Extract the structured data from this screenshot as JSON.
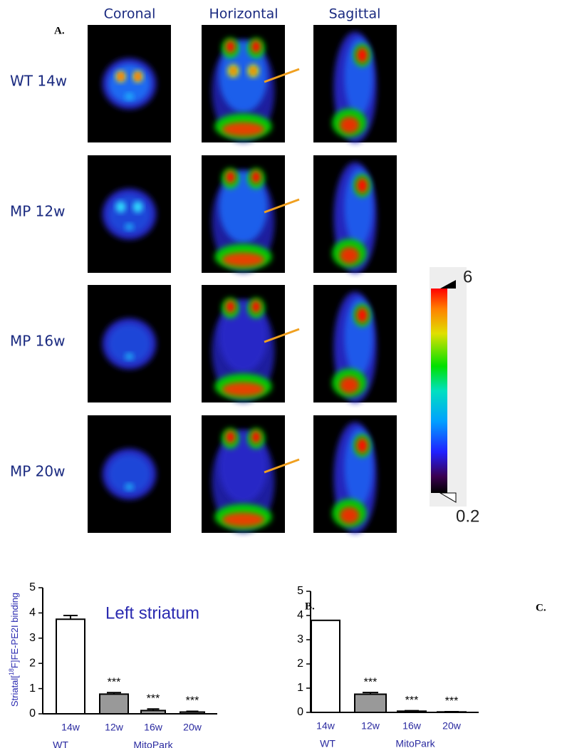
{
  "panel_labels": [
    "A.",
    "B.",
    "C."
  ],
  "images": {
    "columns": [
      "Coronal",
      "Horizontal",
      "Sagittal"
    ],
    "rows": [
      "WT 14w",
      "MP 12w",
      "MP 16w",
      "MP 20w"
    ]
  },
  "colorbar": {
    "max_label": "6",
    "min_label": "0.2"
  },
  "chart_data": [
    {
      "type": "bar",
      "title": "Left striatum",
      "ylabel_parts": [
        "Striatal[",
        "18",
        "F]FE-PE2I binding"
      ],
      "categories": [
        "14w",
        "12w",
        "16w",
        "20w"
      ],
      "groups": [
        "WT",
        "MitoPark"
      ],
      "values": [
        3.75,
        0.78,
        0.13,
        0.07
      ],
      "errors": [
        0.15,
        0.06,
        0.06,
        0.03
      ],
      "colors": [
        "#ffffff",
        "#999999",
        "#999999",
        "#999999"
      ],
      "significance": [
        null,
        "***",
        "***",
        "***"
      ],
      "ylim": [
        0,
        5
      ],
      "yticks": [
        0,
        1,
        2,
        3,
        4,
        5
      ]
    },
    {
      "type": "bar",
      "categories": [
        "14w",
        "12w",
        "16w",
        "20w"
      ],
      "groups": [
        "WT",
        "MitoPark"
      ],
      "values": [
        3.8,
        0.75,
        0.05,
        0.02
      ],
      "errors": [
        0,
        0.07,
        0.02,
        0.01
      ],
      "colors": [
        "#ffffff",
        "#999999",
        "#999999",
        "#999999"
      ],
      "significance": [
        null,
        "***",
        "***",
        "***"
      ],
      "ylim": [
        0,
        5
      ],
      "yticks": [
        0,
        1,
        2,
        3,
        4,
        5
      ]
    }
  ]
}
